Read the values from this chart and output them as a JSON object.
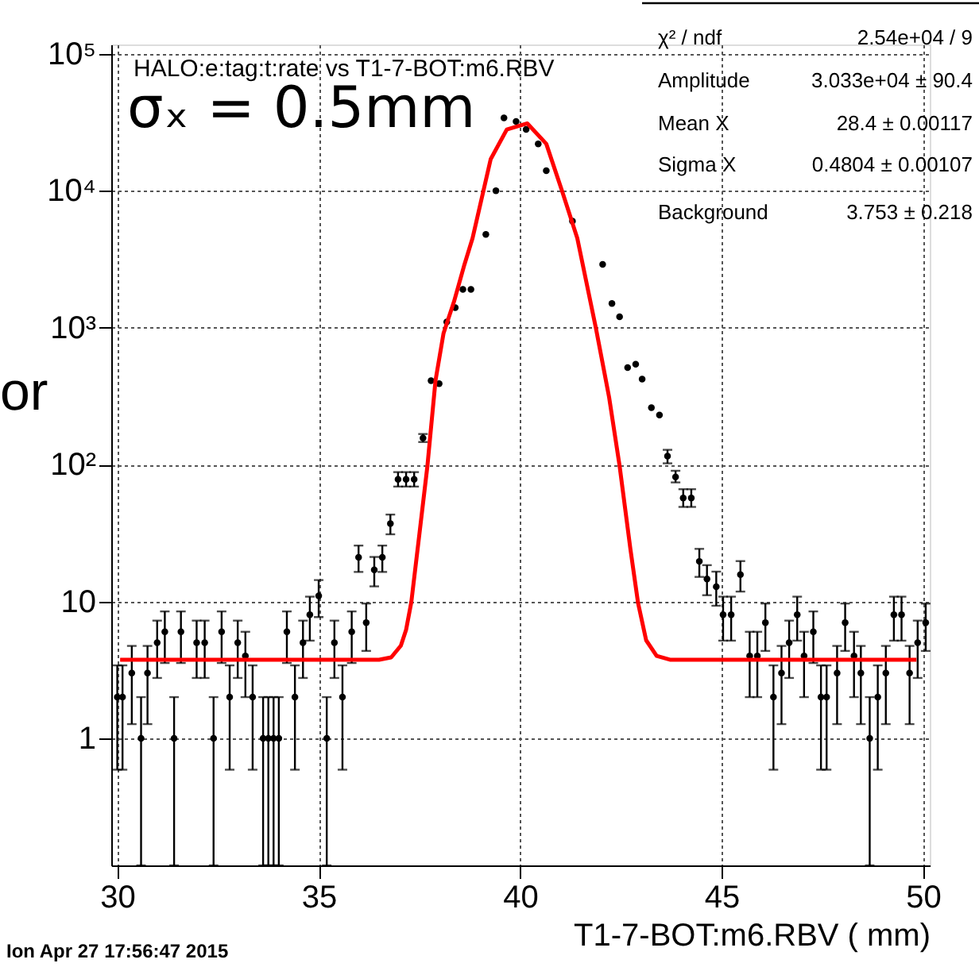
{
  "chart_data": {
    "type": "scatter",
    "title": "HALO:e:tag:t:rate vs  T1-7-BOT:m6.RBV",
    "xlabel": "T1-7-BOT:m6.RBV ( mm)",
    "log": "y",
    "grid": true,
    "xlim": [
      29.85,
      50.17
    ],
    "xticks": [
      30,
      35,
      40,
      45,
      50
    ],
    "ylim": [
      0.118,
      117000
    ],
    "yticks": [
      1,
      10,
      {
        "value": 100,
        "label": "10²"
      },
      {
        "value": 1000,
        "label": "10³"
      },
      {
        "value": 10000,
        "label": "10⁴"
      },
      {
        "value": 100000,
        "label": "10⁵"
      }
    ],
    "annotations": [
      "σₓ = 0.5mm",
      "or",
      "Ion Apr 27 17:56:47 2015",
      "χ² / ndf",
      "2.54e+04 / 9",
      "Amplitude",
      "3.033e+04 ± 90.4",
      "Mean X",
      "28.4 ± 0.00117",
      "Sigma X",
      "0.4804 ± 0.00107",
      "Background",
      "3.753 ± 0.218"
    ],
    "series": [
      {
        "type": "scatter",
        "color": "#000000",
        "marker": "circle",
        "x": [
          30.0,
          30.13,
          30.36,
          30.59,
          30.75,
          30.99,
          31.18,
          31.41,
          31.58,
          31.97,
          32.17,
          32.39,
          32.59,
          32.79,
          32.99,
          33.18,
          33.36,
          33.62,
          33.75,
          33.88,
          34.01,
          34.21,
          34.41,
          34.61,
          34.78,
          35.0,
          35.2,
          35.39,
          35.59,
          35.82,
          35.99,
          36.18,
          36.38,
          36.58,
          36.78,
          36.97,
          37.17,
          37.37,
          37.59,
          37.79,
          37.99,
          38.18,
          38.39,
          38.58,
          38.78,
          39.15,
          39.4,
          39.6,
          39.9,
          40.15,
          40.45,
          40.65,
          41.3,
          42.05,
          42.28,
          42.47,
          42.67,
          42.87,
          43.03,
          43.26,
          43.46,
          43.66,
          43.86,
          44.05,
          44.25,
          44.45,
          44.64,
          44.87,
          45.04,
          45.24,
          45.47,
          45.7,
          45.89,
          46.09,
          46.29,
          46.49,
          46.68,
          46.88,
          47.05,
          47.28,
          47.47,
          47.61,
          47.87,
          48.07,
          48.29,
          48.46,
          48.68,
          48.88,
          49.08,
          49.28,
          49.47,
          49.67,
          49.87,
          50.07
        ],
        "values": [
          2,
          2,
          3,
          1,
          3,
          5,
          6,
          1,
          6,
          5,
          5,
          1,
          6,
          2,
          5,
          4,
          2,
          1,
          1,
          1,
          1,
          6,
          2,
          5,
          8,
          11,
          1,
          5,
          2,
          6,
          21,
          7,
          17,
          21,
          37,
          78,
          78,
          78,
          156,
          410,
          390,
          1100,
          1400,
          1900,
          1900,
          4800,
          10000,
          34000,
          32000,
          28000,
          22000,
          14000,
          6000,
          2900,
          1500,
          1200,
          510,
          540,
          420,
          260,
          230,
          115,
          81,
          57,
          57,
          19.6,
          14.6,
          12.8,
          8,
          8,
          15.7,
          4,
          4,
          7,
          2,
          3,
          5,
          8,
          4,
          6,
          2,
          2,
          3,
          7,
          4,
          3,
          1,
          2,
          3,
          8,
          8,
          3,
          5,
          7
        ],
        "errors": [
          [
            0.59,
            3.41
          ],
          [
            0.59,
            3.41
          ],
          [
            1.27,
            4.73
          ],
          [
            0.118,
            2
          ],
          [
            1.27,
            4.73
          ],
          [
            2.76,
            7.24
          ],
          [
            3.55,
            8.45
          ],
          [
            0.118,
            2
          ],
          [
            3.55,
            8.45
          ],
          [
            2.76,
            7.24
          ],
          [
            2.76,
            7.24
          ],
          [
            0.118,
            2
          ],
          [
            3.55,
            8.45
          ],
          [
            0.59,
            3.41
          ],
          [
            2.76,
            7.24
          ],
          [
            2,
            6
          ],
          [
            0.59,
            3.41
          ],
          [
            0.118,
            2
          ],
          [
            0.118,
            2
          ],
          [
            0.118,
            2
          ],
          [
            0.118,
            2
          ],
          [
            3.55,
            8.45
          ],
          [
            0.59,
            3.41
          ],
          [
            2.76,
            7.24
          ],
          [
            5.17,
            10.83
          ],
          [
            7.68,
            14.32
          ],
          [
            0.118,
            2
          ],
          [
            2.76,
            7.24
          ],
          [
            0.59,
            3.41
          ],
          [
            3.55,
            8.45
          ],
          [
            16.42,
            25.58
          ],
          [
            4.35,
            9.65
          ],
          [
            12.88,
            21.12
          ],
          [
            16.42,
            25.58
          ],
          [
            30.92,
            43.08
          ],
          [
            69,
            88
          ],
          [
            69,
            88
          ],
          [
            69,
            88
          ],
          [
            146,
            167
          ],
          null,
          null,
          null,
          null,
          null,
          null,
          null,
          null,
          null,
          null,
          null,
          null,
          null,
          null,
          null,
          null,
          null,
          null,
          null,
          null,
          null,
          null,
          [
            102,
            128
          ],
          [
            74,
            90
          ],
          [
            49,
            66
          ],
          [
            49,
            66
          ],
          [
            15.1,
            24.2
          ],
          [
            11.1,
            18.4
          ],
          [
            9.3,
            16.5
          ],
          [
            5.17,
            10.83
          ],
          [
            5.17,
            10.83
          ],
          [
            11.8,
            19.7
          ],
          [
            2,
            6
          ],
          [
            2,
            6
          ],
          [
            4.35,
            9.65
          ],
          [
            0.59,
            3.41
          ],
          [
            1.27,
            4.73
          ],
          [
            2.76,
            7.24
          ],
          [
            5.17,
            10.83
          ],
          [
            2,
            6
          ],
          [
            3.55,
            8.45
          ],
          [
            0.59,
            3.41
          ],
          [
            0.59,
            3.41
          ],
          [
            1.27,
            4.73
          ],
          [
            4.35,
            9.65
          ],
          [
            2,
            6
          ],
          [
            1.27,
            4.73
          ],
          [
            0.118,
            2
          ],
          [
            0.59,
            3.41
          ],
          [
            1.27,
            4.73
          ],
          [
            5.17,
            10.83
          ],
          [
            5.17,
            10.83
          ],
          [
            1.27,
            4.73
          ],
          [
            2.76,
            7.24
          ],
          [
            4.35,
            9.65
          ]
        ]
      },
      {
        "type": "line",
        "color": "#ff0000",
        "marker": "none",
        "line_style": "solid",
        "x": [
          30.07,
          36.5,
          36.8,
          37.04,
          37.17,
          37.3,
          37.5,
          37.7,
          37.9,
          38.1,
          38.36,
          38.62,
          38.82,
          39.27,
          39.67,
          40.18,
          40.65,
          41.04,
          41.42,
          41.88,
          42.21,
          42.47,
          42.74,
          42.93,
          43.13,
          43.39,
          43.72,
          49.84
        ],
        "values": [
          3.75,
          3.75,
          3.9,
          4.75,
          6.2,
          9.9,
          31,
          98,
          410,
          910,
          1550,
          2900,
          4500,
          17000,
          28000,
          31000,
          22000,
          10000,
          4500,
          1000,
          310,
          98,
          24,
          9.7,
          5.2,
          4.0,
          3.75,
          3.75
        ]
      }
    ]
  }
}
